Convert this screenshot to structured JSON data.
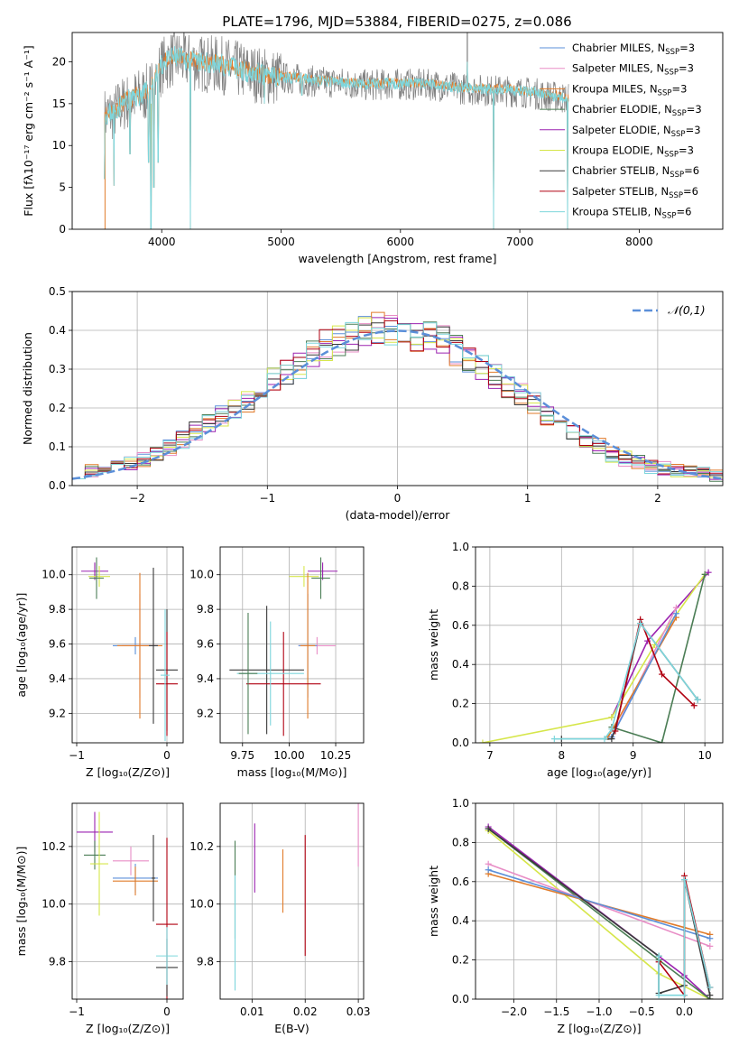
{
  "figure_title": "PLATE=1796, MJD=53884, FIBERID=0275, z=0.086",
  "legend_models": [
    {
      "name": "Chabrier MILES, N",
      "sub": "SSP",
      "suffix": "=3",
      "color": "#5b8fd9"
    },
    {
      "name": "Salpeter MILES, N",
      "sub": "SSP",
      "suffix": "=3",
      "color": "#e88dc6"
    },
    {
      "name": "Kroupa MILES, N",
      "sub": "SSP",
      "suffix": "=3",
      "color": "#e07b2a"
    },
    {
      "name": "Chabrier ELODIE, N",
      "sub": "SSP",
      "suffix": "=3",
      "color": "#4b7d55"
    },
    {
      "name": "Salpeter ELODIE, N",
      "sub": "SSP",
      "suffix": "=3",
      "color": "#9b22b0"
    },
    {
      "name": "Kroupa ELODIE, N",
      "sub": "SSP",
      "suffix": "=3",
      "color": "#d6e64a"
    },
    {
      "name": "Chabrier STELIB, N",
      "sub": "SSP",
      "suffix": "=6",
      "color": "#3a3a3a"
    },
    {
      "name": "Salpeter STELIB, N",
      "sub": "SSP",
      "suffix": "=6",
      "color": "#b00010"
    },
    {
      "name": "Kroupa STELIB, N",
      "sub": "SSP",
      "suffix": "=6",
      "color": "#7ed6dc"
    }
  ],
  "chart_data": [
    {
      "id": "spectrum",
      "type": "line",
      "xlabel": "wavelength [Angstrom, rest frame]",
      "ylabel": "Flux [fλ10⁻¹⁷ erg cm⁻² s⁻¹ A⁻¹]",
      "xlim": [
        3250,
        8700
      ],
      "ylim": [
        0,
        23.5
      ],
      "xticks": [
        4000,
        5000,
        6000,
        7000,
        8000
      ],
      "yticks": [
        0,
        5,
        10,
        15,
        20
      ],
      "data_color": "#7f7f7f",
      "model_color": "#7ed6dc",
      "continuum": [
        [
          3520,
          13.5
        ],
        [
          3600,
          14
        ],
        [
          3700,
          15.2
        ],
        [
          3800,
          15.8
        ],
        [
          3900,
          16.5
        ],
        [
          4000,
          19.5
        ],
        [
          4100,
          20.5
        ],
        [
          4300,
          19.8
        ],
        [
          4500,
          19.6
        ],
        [
          4700,
          18.8
        ],
        [
          4900,
          18.2
        ],
        [
          5100,
          18
        ],
        [
          5300,
          17.6
        ],
        [
          5500,
          17.5
        ],
        [
          5700,
          17.2
        ],
        [
          5900,
          17.3
        ],
        [
          6100,
          17.3
        ],
        [
          6300,
          17.2
        ],
        [
          6500,
          16.8
        ],
        [
          6700,
          16.6
        ],
        [
          6900,
          16.5
        ],
        [
          7100,
          16.3
        ],
        [
          7300,
          15.8
        ],
        [
          7400,
          15.6
        ]
      ],
      "spikes": [
        [
          3520,
          6
        ],
        [
          3600,
          5.2
        ],
        [
          3735,
          9
        ],
        [
          3890,
          8
        ],
        [
          3910,
          0
        ],
        [
          3935,
          5
        ],
        [
          3970,
          8
        ],
        [
          4240,
          0
        ],
        [
          4860,
          15
        ],
        [
          5175,
          16
        ],
        [
          6560,
          20
        ],
        [
          6780,
          0
        ],
        [
          7400,
          0
        ]
      ]
    },
    {
      "id": "residuals",
      "type": "step",
      "xlabel": "(data-model)/error",
      "ylabel": "Normed distribution",
      "xlim": [
        -2.5,
        2.5
      ],
      "ylim": [
        0,
        0.5
      ],
      "xticks": [
        -2,
        -1,
        0,
        1,
        2
      ],
      "yticks": [
        0.0,
        0.1,
        0.2,
        0.3,
        0.4,
        0.5
      ],
      "legend_label": "𝒩(0,1)",
      "gaussian_color": "#5b8fd9",
      "bin_edges_start": -2.5,
      "bin_width": 0.1,
      "base_hist": [
        0.035,
        0.04,
        0.045,
        0.05,
        0.055,
        0.065,
        0.08,
        0.1,
        0.12,
        0.14,
        0.16,
        0.18,
        0.2,
        0.22,
        0.25,
        0.27,
        0.29,
        0.31,
        0.34,
        0.36,
        0.37,
        0.38,
        0.4,
        0.41,
        0.4,
        0.4,
        0.39,
        0.38,
        0.37,
        0.35,
        0.33,
        0.31,
        0.28,
        0.26,
        0.24,
        0.21,
        0.18,
        0.16,
        0.14,
        0.12,
        0.1,
        0.08,
        0.07,
        0.06,
        0.05,
        0.045,
        0.04,
        0.035,
        0.03,
        0.025
      ]
    },
    {
      "id": "age_vs_z",
      "type": "errorbar",
      "xlabel": "Z [log₁₀(Z/Z⊙)]",
      "ylabel": "age  [log₁₀(age/yr)]",
      "xlim": [
        -1.05,
        0.18
      ],
      "ylim": [
        9.03,
        10.16
      ],
      "xticks": [
        -1,
        0
      ],
      "yticks": [
        9.2,
        9.4,
        9.6,
        9.8,
        10.0
      ],
      "points": [
        {
          "x": -0.8,
          "y": 10.02,
          "xe": 0.15,
          "ye": 0.05,
          "c": "#9b22b0"
        },
        {
          "x": -0.75,
          "y": 9.99,
          "xe": 0.12,
          "ye": 0.06,
          "c": "#d6e64a"
        },
        {
          "x": -0.78,
          "y": 9.98,
          "xe": 0.08,
          "ye": 0.12,
          "c": "#4b7d55"
        },
        {
          "x": -0.35,
          "y": 9.59,
          "xe": 0.25,
          "ye": 0.05,
          "c": "#5b8fd9"
        },
        {
          "x": -0.3,
          "y": 9.59,
          "xe": 0.2,
          "ye": 0.3,
          "c": "#e88dc6"
        },
        {
          "x": -0.3,
          "y": 9.59,
          "xe": 0.25,
          "ye": 0.42,
          "c": "#e07b2a"
        },
        {
          "x": -0.15,
          "y": 9.59,
          "xe": 0.05,
          "ye": 0.45,
          "c": "#3a3a3a"
        },
        {
          "x": 0.0,
          "y": 9.45,
          "xe": 0.12,
          "ye": 0.35,
          "c": "#3a3a3a"
        },
        {
          "x": 0.0,
          "y": 9.37,
          "xe": 0.12,
          "ye": 0.3,
          "c": "#b00010"
        },
        {
          "x": -0.02,
          "y": 9.42,
          "xe": 0.05,
          "ye": 0.38,
          "c": "#7ed6dc"
        }
      ]
    },
    {
      "id": "age_vs_mass",
      "type": "errorbar",
      "xlabel": "mass [log₁₀(M/M⊙)]",
      "ylabel": "",
      "xlim": [
        9.63,
        10.4
      ],
      "ylim": [
        9.03,
        10.16
      ],
      "xticks": [
        9.75,
        10.0,
        10.25
      ],
      "yticks": [
        9.2,
        9.4,
        9.6,
        9.8,
        10.0
      ],
      "points": [
        {
          "x": 10.18,
          "y": 10.02,
          "xe": 0.08,
          "ye": 0.05,
          "c": "#9b22b0"
        },
        {
          "x": 10.08,
          "y": 9.99,
          "xe": 0.08,
          "ye": 0.06,
          "c": "#d6e64a"
        },
        {
          "x": 10.17,
          "y": 9.98,
          "xe": 0.05,
          "ye": 0.12,
          "c": "#4b7d55"
        },
        {
          "x": 10.15,
          "y": 9.59,
          "xe": 0.1,
          "ye": 0.05,
          "c": "#e88dc6"
        },
        {
          "x": 10.1,
          "y": 9.59,
          "xe": 0.05,
          "ye": 0.3,
          "c": "#5b8fd9"
        },
        {
          "x": 10.1,
          "y": 9.59,
          "xe": 0.04,
          "ye": 0.42,
          "c": "#e07b2a"
        },
        {
          "x": 9.88,
          "y": 9.45,
          "xe": 0.2,
          "ye": 0.37,
          "c": "#3a3a3a"
        },
        {
          "x": 9.97,
          "y": 9.37,
          "xe": 0.2,
          "ye": 0.3,
          "c": "#b00010"
        },
        {
          "x": 9.9,
          "y": 9.43,
          "xe": 0.18,
          "ye": 0.3,
          "c": "#7ed6dc"
        },
        {
          "x": 9.78,
          "y": 9.43,
          "xe": 0.05,
          "ye": 0.35,
          "c": "#4b7d55"
        }
      ]
    },
    {
      "id": "weight_vs_age",
      "type": "line",
      "xlabel": "age  [log₁₀(age/yr)]",
      "ylabel": "mass weight",
      "xlim": [
        6.8,
        10.25
      ],
      "ylim": [
        0,
        1.0
      ],
      "xticks": [
        7,
        8,
        9,
        10
      ],
      "yticks": [
        0.0,
        0.2,
        0.4,
        0.6,
        0.8,
        1.0
      ],
      "series": [
        {
          "c": "#9b22b0",
          "x": [
            8.7,
            9.2,
            10.05
          ],
          "y": [
            0.13,
            0.52,
            0.87
          ]
        },
        {
          "c": "#d6e64a",
          "x": [
            6.9,
            8.7,
            9.3,
            10.0
          ],
          "y": [
            0.0,
            0.13,
            0.5,
            0.86
          ]
        },
        {
          "c": "#4b7d55",
          "x": [
            8.7,
            9.4,
            10.0
          ],
          "y": [
            0.08,
            0.0,
            0.86
          ]
        },
        {
          "c": "#e88dc6",
          "x": [
            8.7,
            9.6
          ],
          "y": [
            0.03,
            0.69
          ]
        },
        {
          "c": "#e07b2a",
          "x": [
            8.65,
            9.6
          ],
          "y": [
            0.03,
            0.64
          ]
        },
        {
          "c": "#5b8fd9",
          "x": [
            8.7,
            9.6
          ],
          "y": [
            0.03,
            0.66
          ]
        },
        {
          "c": "#3a3a3a",
          "x": [
            8.0,
            8.7,
            8.75,
            9.1,
            9.9
          ],
          "y": [
            0.02,
            0.02,
            0.07,
            0.61,
            0.22
          ]
        },
        {
          "c": "#b00010",
          "x": [
            8.75,
            9.1,
            9.4,
            9.85
          ],
          "y": [
            0.06,
            0.63,
            0.35,
            0.19
          ]
        },
        {
          "c": "#7ed6dc",
          "x": [
            7.9,
            8.6,
            8.7,
            9.1,
            9.9
          ],
          "y": [
            0.02,
            0.02,
            0.07,
            0.61,
            0.22
          ]
        }
      ]
    },
    {
      "id": "mass_vs_z",
      "type": "errorbar",
      "xlabel": "Z [log₁₀(Z/Z⊙)]",
      "ylabel": "mass [log₁₀(M/M⊙)]",
      "xlim": [
        -1.05,
        0.18
      ],
      "ylim": [
        9.67,
        10.35
      ],
      "xticks": [
        -1,
        0
      ],
      "yticks": [
        9.8,
        10.0,
        10.2
      ],
      "points": [
        {
          "x": -0.8,
          "y": 10.25,
          "xe": 0.2,
          "ye": 0.07,
          "c": "#9b22b0"
        },
        {
          "x": -0.8,
          "y": 10.17,
          "xe": 0.12,
          "ye": 0.05,
          "c": "#4b7d55"
        },
        {
          "x": -0.75,
          "y": 10.14,
          "xe": 0.1,
          "ye": 0.18,
          "c": "#d6e64a"
        },
        {
          "x": -0.4,
          "y": 10.15,
          "xe": 0.2,
          "ye": 0.05,
          "c": "#e88dc6"
        },
        {
          "x": -0.35,
          "y": 10.09,
          "xe": 0.25,
          "ye": 0.05,
          "c": "#5b8fd9"
        },
        {
          "x": -0.35,
          "y": 10.08,
          "xe": 0.25,
          "ye": 0.05,
          "c": "#e07b2a"
        },
        {
          "x": -0.15,
          "y": 10.09,
          "xe": 0.02,
          "ye": 0.15,
          "c": "#3a3a3a"
        },
        {
          "x": 0.0,
          "y": 9.93,
          "xe": 0.12,
          "ye": 0.3,
          "c": "#b00010"
        },
        {
          "x": 0.0,
          "y": 9.78,
          "xe": 0.12,
          "ye": 0.1,
          "c": "#3a3a3a"
        },
        {
          "x": 0.0,
          "y": 9.82,
          "xe": 0.12,
          "ye": 0.1,
          "c": "#7ed6dc"
        }
      ]
    },
    {
      "id": "mass_vs_ebv",
      "type": "errorbar",
      "xlabel": "E(B-V)",
      "ylabel": "",
      "xlim": [
        0.004,
        0.031
      ],
      "ylim": [
        9.67,
        10.35
      ],
      "xticks": [
        0.01,
        0.02,
        0.03
      ],
      "yticks": [
        9.8,
        10.0,
        10.2
      ],
      "points": [
        {
          "x": 0.0068,
          "y": 10.05,
          "xe": 0,
          "ye": 0.17,
          "c": "#4b7d55"
        },
        {
          "x": 0.0068,
          "y": 9.9,
          "xe": 0,
          "ye": 0.2,
          "c": "#7ed6dc"
        },
        {
          "x": 0.0105,
          "y": 10.16,
          "xe": 0,
          "ye": 0.12,
          "c": "#9b22b0"
        },
        {
          "x": 0.0158,
          "y": 10.08,
          "xe": 0,
          "ye": 0.11,
          "c": "#e07b2a"
        },
        {
          "x": 0.02,
          "y": 10.03,
          "xe": 0,
          "ye": 0.21,
          "c": "#b00010"
        },
        {
          "x": 0.03,
          "y": 10.24,
          "xe": 0,
          "ye": 0.11,
          "c": "#e88dc6"
        }
      ]
    },
    {
      "id": "weight_vs_z",
      "type": "line",
      "xlabel": "Z [log₁₀(Z/Z⊙)]",
      "ylabel": "mass weight",
      "xlim": [
        -2.45,
        0.45
      ],
      "ylim": [
        0,
        1.0
      ],
      "xticks": [
        -2.0,
        -1.5,
        -1.0,
        -0.5,
        0.0
      ],
      "yticks": [
        0.0,
        0.2,
        0.4,
        0.6,
        0.8,
        1.0
      ],
      "series": [
        {
          "c": "#9b22b0",
          "x": [
            -2.3,
            0.0,
            0.3
          ],
          "y": [
            0.88,
            0.12,
            0.0
          ]
        },
        {
          "c": "#d6e64a",
          "x": [
            -2.3,
            -0.3,
            0.3
          ],
          "y": [
            0.86,
            0.13,
            0.0
          ]
        },
        {
          "c": "#4b7d55",
          "x": [
            -2.3,
            -0.3,
            0.3
          ],
          "y": [
            0.87,
            0.2,
            0.0
          ]
        },
        {
          "c": "#e88dc6",
          "x": [
            -2.3,
            0.3
          ],
          "y": [
            0.69,
            0.27
          ]
        },
        {
          "c": "#e07b2a",
          "x": [
            -2.3,
            0.3
          ],
          "y": [
            0.64,
            0.33
          ]
        },
        {
          "c": "#5b8fd9",
          "x": [
            -2.3,
            0.3
          ],
          "y": [
            0.66,
            0.31
          ]
        },
        {
          "c": "#3a3a3a",
          "x": [
            -2.3,
            -0.3,
            -0.3,
            0.0,
            0.0,
            0.3
          ],
          "y": [
            0.87,
            0.22,
            0.03,
            0.07,
            0.61,
            0.02
          ]
        },
        {
          "c": "#b00010",
          "x": [
            -0.3,
            0.0,
            0.0,
            0.3
          ],
          "y": [
            0.19,
            0.02,
            0.63,
            0.06
          ]
        },
        {
          "c": "#7ed6dc",
          "x": [
            -0.3,
            -0.3,
            0.0,
            0.0,
            0.3
          ],
          "y": [
            0.22,
            0.02,
            0.02,
            0.61,
            0.06
          ]
        }
      ]
    }
  ]
}
